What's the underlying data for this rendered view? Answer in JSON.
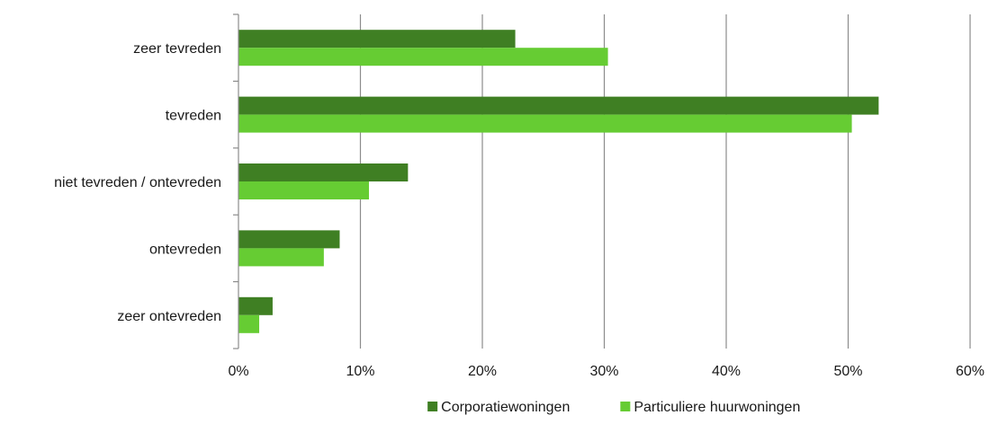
{
  "chart_data": {
    "type": "bar",
    "orientation": "horizontal",
    "categories": [
      "zeer tevreden",
      "tevreden",
      "niet tevreden / ontevreden",
      "ontevreden",
      "zeer ontevreden"
    ],
    "series": [
      {
        "name": "Corporatiewoningen",
        "color": "#3f7f23",
        "values": [
          22.7,
          52.5,
          13.9,
          8.3,
          2.8
        ]
      },
      {
        "name": "Particuliere huurwoningen",
        "color": "#66cc33",
        "values": [
          30.3,
          50.3,
          10.7,
          7.0,
          1.7
        ]
      }
    ],
    "xlim": [
      0,
      60
    ],
    "x_ticks": [
      0,
      10,
      20,
      30,
      40,
      50,
      60
    ],
    "x_tick_format": "percent",
    "grid": "vertical",
    "legend_position": "bottom"
  }
}
